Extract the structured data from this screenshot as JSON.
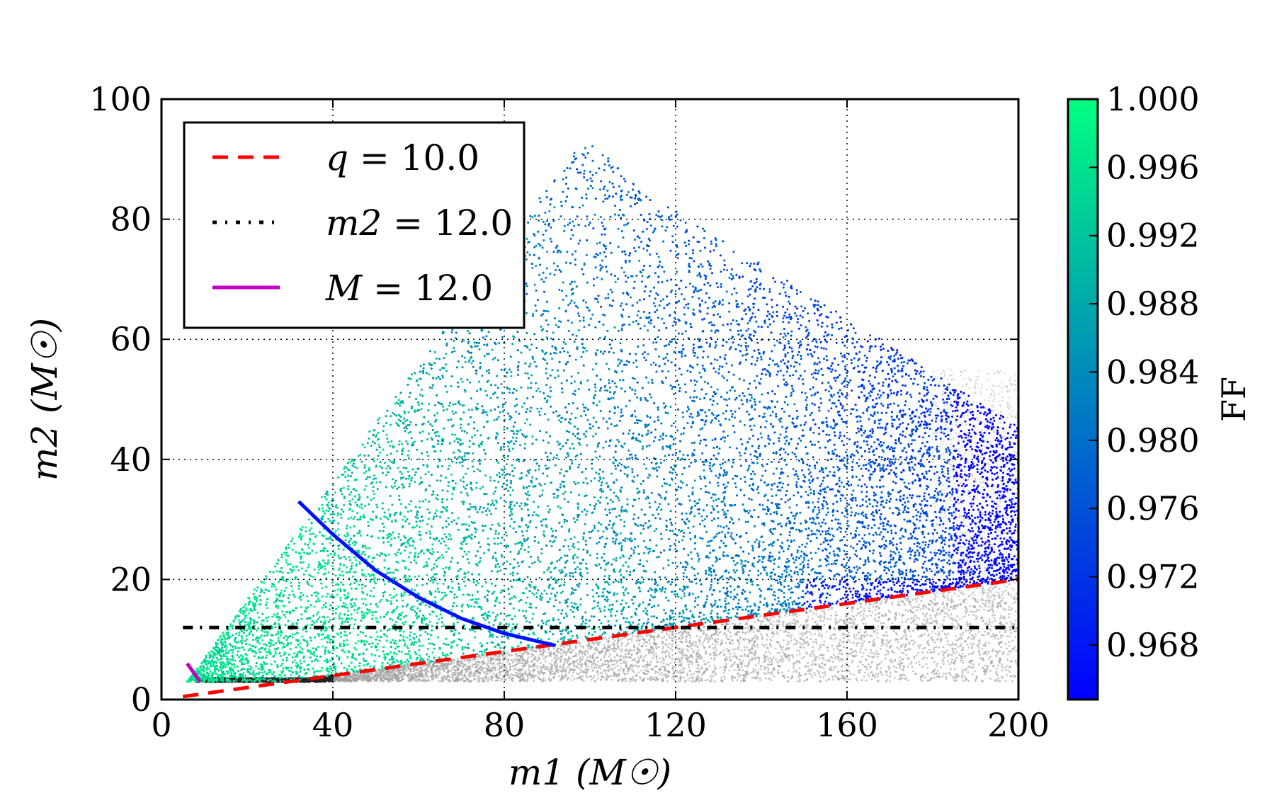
{
  "chart_data": {
    "type": "scatter",
    "title": "",
    "xlabel": "m1 (M☉)",
    "ylabel": "m2 (M☉)",
    "xlim": [
      0,
      200
    ],
    "ylim": [
      0,
      100
    ],
    "xticks": [
      0,
      40,
      80,
      120,
      160,
      200
    ],
    "yticks": [
      0,
      20,
      40,
      60,
      80,
      100
    ],
    "grid": true,
    "legend_position": "top-left",
    "colorbar": {
      "label": "FF",
      "range": [
        0.9648,
        1.0
      ],
      "ticks": [
        "0.968",
        "0.972",
        "0.976",
        "0.980",
        "0.984",
        "0.988",
        "0.992",
        "0.996",
        "1.000"
      ],
      "colors": [
        "#0000ff",
        "#00ff80"
      ]
    },
    "scatter_region": {
      "description": "Colored points fill triangular region bounded by q=10 line below, apex near (100, 95), right edge near m1=200; gray points where q>10 below the red line",
      "apex": [
        100,
        95
      ],
      "bottom_left": [
        6,
        3
      ],
      "right_top": [
        200,
        45
      ],
      "ff_trend": "high FF (~1.0) at low total mass, decreasing to ~0.966 near high m1"
    },
    "series": [
      {
        "name": "q = 10.0",
        "style": "dashed",
        "color": "#ff0000",
        "x": [
          5,
          200
        ],
        "y": [
          0.5,
          20
        ]
      },
      {
        "name": "m2 = 12.0",
        "style": "dashdot",
        "color": "#000000",
        "x": [
          5,
          200
        ],
        "y": [
          12,
          12
        ]
      },
      {
        "name": "M = 12.0",
        "style": "solid",
        "color": "#c000c0",
        "x": [
          6,
          9
        ],
        "y": [
          6,
          3
        ]
      },
      {
        "name": "",
        "style": "solid",
        "color": "#0010ff",
        "x": [
          32,
          40,
          50,
          60,
          70,
          80,
          92
        ],
        "y": [
          33,
          27.5,
          21.5,
          17,
          13.5,
          11,
          9
        ]
      }
    ],
    "legend": [
      {
        "label_prefix": "q",
        "label_suffix": " = 10.0",
        "color": "#ff0000",
        "style": "dashed"
      },
      {
        "label_prefix": "m2",
        "label_suffix": " = 12.0",
        "color": "#000000",
        "style": "dashdot"
      },
      {
        "label_prefix": "M",
        "label_suffix": " = 12.0",
        "color": "#c000c0",
        "style": "solid"
      }
    ]
  }
}
